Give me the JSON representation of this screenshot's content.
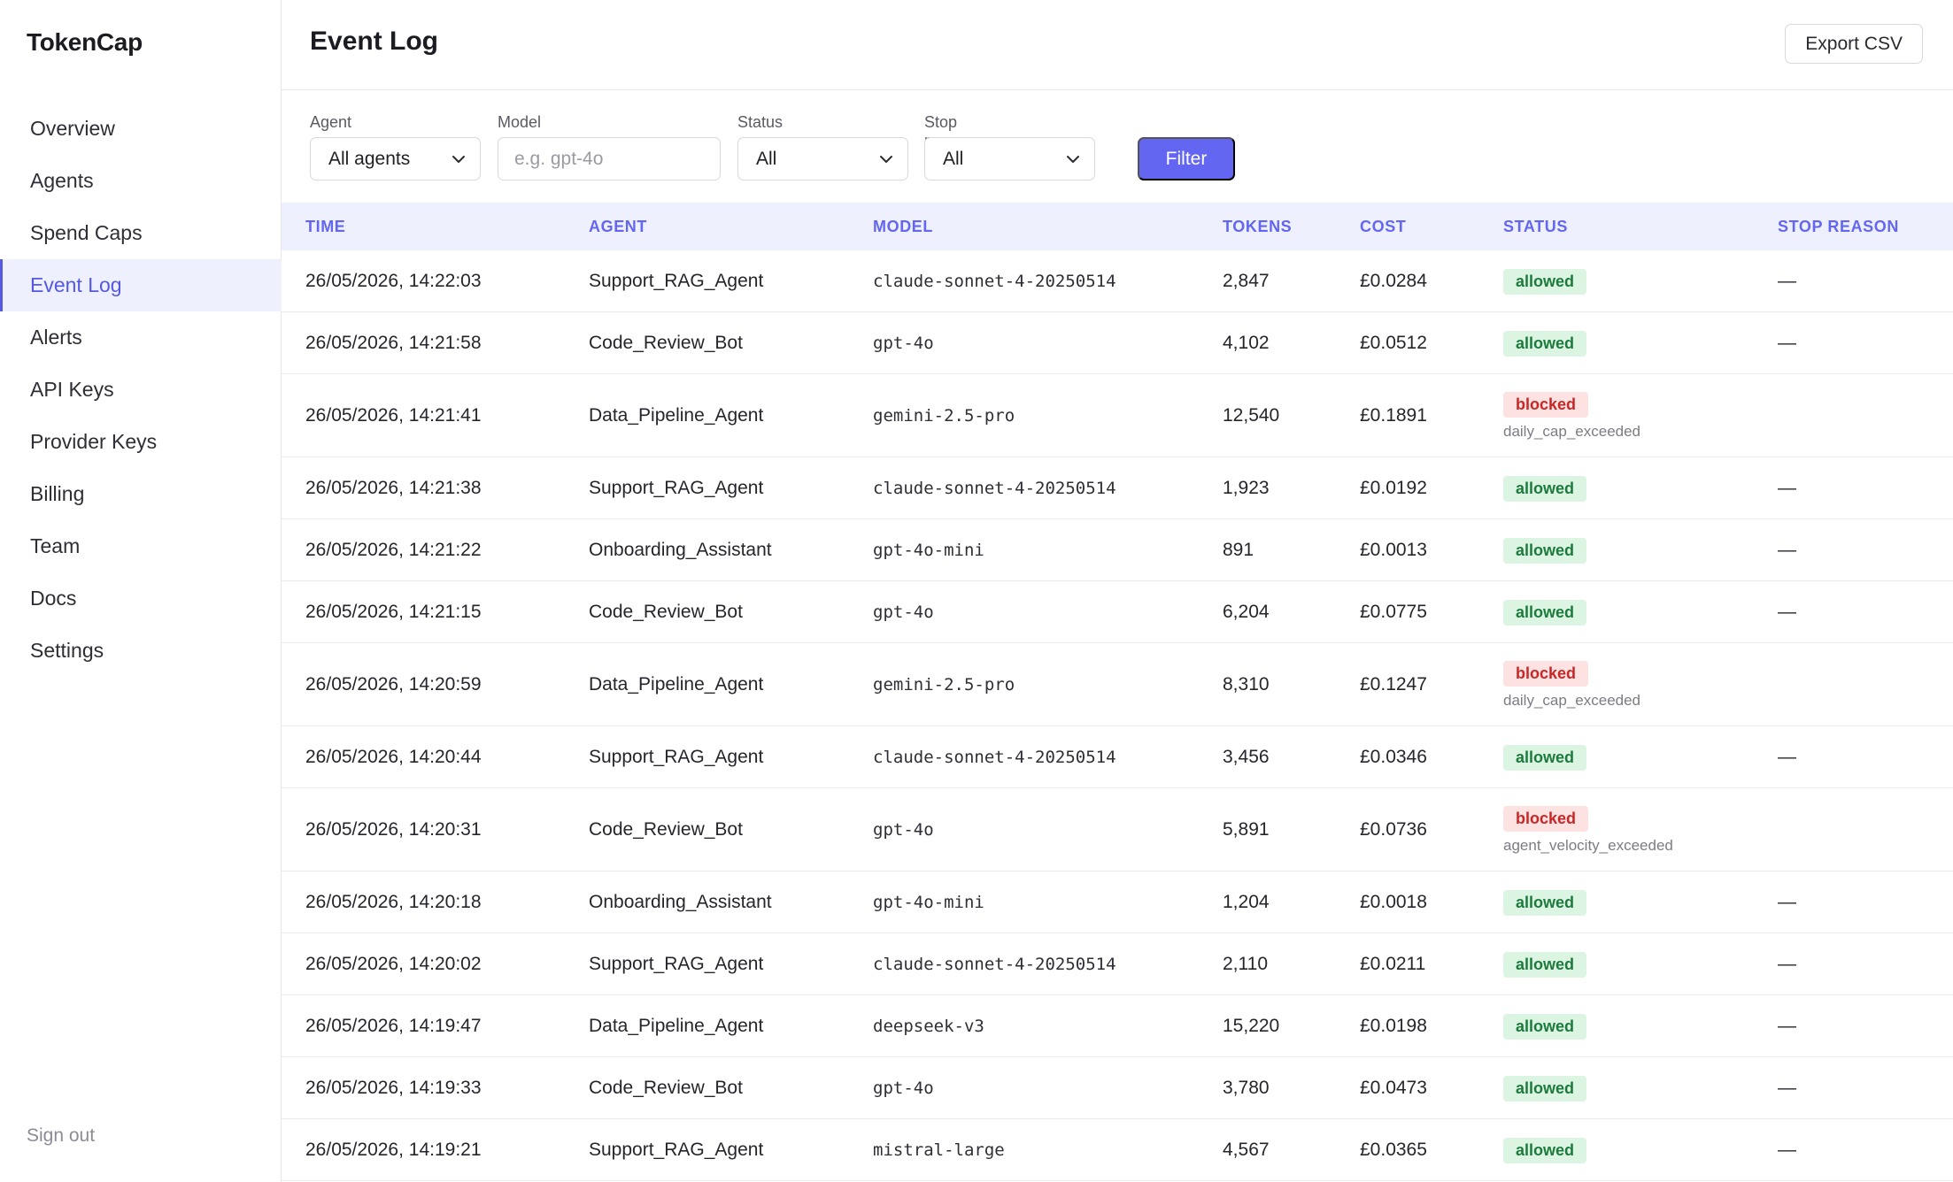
{
  "app": {
    "brand": "TokenCap"
  },
  "sidebar": {
    "items": [
      {
        "label": "Overview"
      },
      {
        "label": "Agents"
      },
      {
        "label": "Spend Caps"
      },
      {
        "label": "Event Log"
      },
      {
        "label": "Alerts"
      },
      {
        "label": "API Keys"
      },
      {
        "label": "Provider Keys"
      },
      {
        "label": "Billing"
      },
      {
        "label": "Team"
      },
      {
        "label": "Docs"
      },
      {
        "label": "Settings"
      }
    ],
    "active": "Event Log",
    "signout": "Sign out"
  },
  "header": {
    "title": "Event Log",
    "export_label": "Export CSV"
  },
  "filters": {
    "agent": {
      "label": "Agent",
      "value": "All agents"
    },
    "model": {
      "label": "Model",
      "placeholder": "e.g. gpt-4o"
    },
    "status": {
      "label": "Status",
      "value": "All"
    },
    "stop_reason": {
      "label": "Stop reason",
      "value": "All"
    },
    "button": "Filter"
  },
  "table": {
    "columns": [
      "TIME",
      "AGENT",
      "MODEL",
      "TOKENS",
      "COST",
      "STATUS",
      "STOP REASON"
    ],
    "rows": [
      {
        "time": "26/05/2026, 14:22:03",
        "agent": "Support_RAG_Agent",
        "model": "claude-sonnet-4-20250514",
        "tokens": "2,847",
        "cost": "£0.0284",
        "status": "allowed",
        "reason": "",
        "stop": "—"
      },
      {
        "time": "26/05/2026, 14:21:58",
        "agent": "Code_Review_Bot",
        "model": "gpt-4o",
        "tokens": "4,102",
        "cost": "£0.0512",
        "status": "allowed",
        "reason": "",
        "stop": "—"
      },
      {
        "time": "26/05/2026, 14:21:41",
        "agent": "Data_Pipeline_Agent",
        "model": "gemini-2.5-pro",
        "tokens": "12,540",
        "cost": "£0.1891",
        "status": "blocked",
        "reason": "daily_cap_exceeded",
        "stop": ""
      },
      {
        "time": "26/05/2026, 14:21:38",
        "agent": "Support_RAG_Agent",
        "model": "claude-sonnet-4-20250514",
        "tokens": "1,923",
        "cost": "£0.0192",
        "status": "allowed",
        "reason": "",
        "stop": "—"
      },
      {
        "time": "26/05/2026, 14:21:22",
        "agent": "Onboarding_Assistant",
        "model": "gpt-4o-mini",
        "tokens": "891",
        "cost": "£0.0013",
        "status": "allowed",
        "reason": "",
        "stop": "—"
      },
      {
        "time": "26/05/2026, 14:21:15",
        "agent": "Code_Review_Bot",
        "model": "gpt-4o",
        "tokens": "6,204",
        "cost": "£0.0775",
        "status": "allowed",
        "reason": "",
        "stop": "—"
      },
      {
        "time": "26/05/2026, 14:20:59",
        "agent": "Data_Pipeline_Agent",
        "model": "gemini-2.5-pro",
        "tokens": "8,310",
        "cost": "£0.1247",
        "status": "blocked",
        "reason": "daily_cap_exceeded",
        "stop": ""
      },
      {
        "time": "26/05/2026, 14:20:44",
        "agent": "Support_RAG_Agent",
        "model": "claude-sonnet-4-20250514",
        "tokens": "3,456",
        "cost": "£0.0346",
        "status": "allowed",
        "reason": "",
        "stop": "—"
      },
      {
        "time": "26/05/2026, 14:20:31",
        "agent": "Code_Review_Bot",
        "model": "gpt-4o",
        "tokens": "5,891",
        "cost": "£0.0736",
        "status": "blocked",
        "reason": "agent_velocity_exceeded",
        "stop": ""
      },
      {
        "time": "26/05/2026, 14:20:18",
        "agent": "Onboarding_Assistant",
        "model": "gpt-4o-mini",
        "tokens": "1,204",
        "cost": "£0.0018",
        "status": "allowed",
        "reason": "",
        "stop": "—"
      },
      {
        "time": "26/05/2026, 14:20:02",
        "agent": "Support_RAG_Agent",
        "model": "claude-sonnet-4-20250514",
        "tokens": "2,110",
        "cost": "£0.0211",
        "status": "allowed",
        "reason": "",
        "stop": "—"
      },
      {
        "time": "26/05/2026, 14:19:47",
        "agent": "Data_Pipeline_Agent",
        "model": "deepseek-v3",
        "tokens": "15,220",
        "cost": "£0.0198",
        "status": "allowed",
        "reason": "",
        "stop": "—"
      },
      {
        "time": "26/05/2026, 14:19:33",
        "agent": "Code_Review_Bot",
        "model": "gpt-4o",
        "tokens": "3,780",
        "cost": "£0.0473",
        "status": "allowed",
        "reason": "",
        "stop": "—"
      },
      {
        "time": "26/05/2026, 14:19:21",
        "agent": "Support_RAG_Agent",
        "model": "mistral-large",
        "tokens": "4,567",
        "cost": "£0.0365",
        "status": "allowed",
        "reason": "",
        "stop": "—"
      }
    ]
  },
  "colors": {
    "accent": "#6366f1",
    "allowed_bg": "#dcf5e3",
    "allowed_fg": "#1d7a3c",
    "blocked_bg": "#fde2e2",
    "blocked_fg": "#c62828"
  },
  "icons": {
    "dropdown": "chevron-down-icon"
  }
}
